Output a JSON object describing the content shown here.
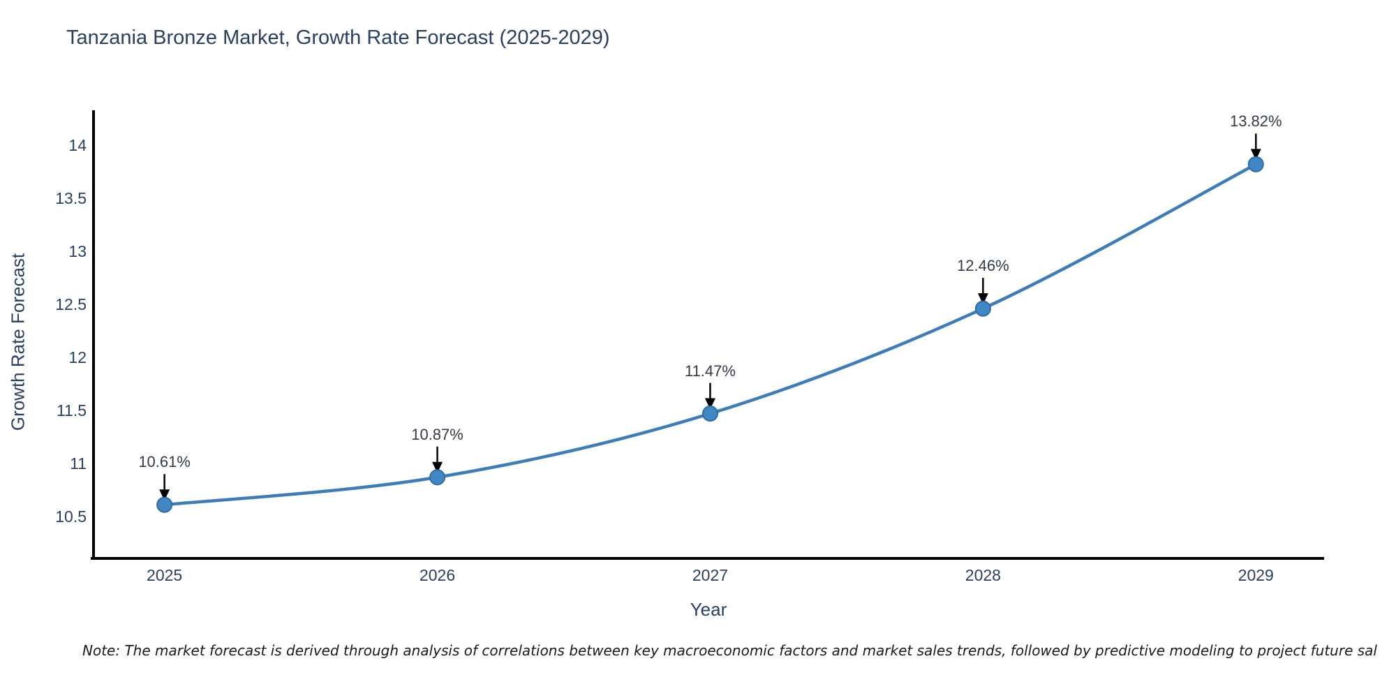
{
  "chart_data": {
    "type": "line",
    "title": "Tanzania Bronze Market, Growth Rate Forecast (2025-2029)",
    "xlabel": "Year",
    "ylabel": "Growth Rate Forecast",
    "x": [
      2025,
      2026,
      2027,
      2028,
      2029
    ],
    "series": [
      {
        "name": "Growth Rate Forecast",
        "values": [
          10.61,
          10.87,
          11.47,
          12.46,
          13.82
        ]
      }
    ],
    "point_labels": [
      "10.61%",
      "10.87%",
      "11.47%",
      "12.46%",
      "13.82%"
    ],
    "yticks": [
      10.5,
      11,
      11.5,
      12,
      12.5,
      13,
      13.5,
      14
    ],
    "xlim": [
      2024.74,
      2029.25
    ],
    "ylim": [
      10.105,
      14.316
    ],
    "grid": false,
    "legend": "none",
    "colors": {
      "line": "#3d7cb8",
      "marker_fill": "#4187c4",
      "marker_edge": "#2e6ca3",
      "axis": "#000000",
      "text": "#2a3f5f",
      "annotation": "#333a45"
    }
  },
  "note": {
    "text": "Note: The market forecast is derived through analysis of correlations between key macroeconomic factors and market sales trends, followed by predictive modeling to project future sal"
  }
}
